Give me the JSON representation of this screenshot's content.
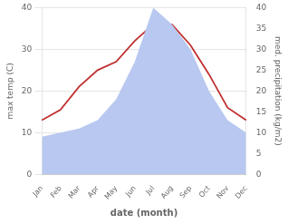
{
  "chart_data": {
    "type": "line",
    "categories": [
      "Jan",
      "Feb",
      "Mar",
      "Apr",
      "May",
      "Jun",
      "Jul",
      "Aug",
      "Sep",
      "Oct",
      "Nov",
      "Dec"
    ],
    "series": [
      {
        "type": "area",
        "color": "#b8c8f0",
        "values": [
          9,
          10,
          11,
          13,
          18,
          27,
          40,
          36,
          30,
          20,
          13,
          10
        ],
        "axis": "y2"
      },
      {
        "type": "line",
        "color": "#c03030",
        "values": [
          13,
          15.5,
          21,
          25,
          27,
          32,
          36,
          36,
          31,
          24,
          16,
          13
        ]
      }
    ],
    "xlabel": "date (month)",
    "ylabel": "max temp (C)",
    "y2label": "med. precipitation (kg/m2)",
    "ylim": [
      0,
      40
    ],
    "yticks": [
      0,
      10,
      20,
      30,
      40
    ],
    "y2lim": [
      0,
      40
    ],
    "y2ticks": [
      0,
      5,
      10,
      15,
      20,
      25,
      30,
      35,
      40
    ],
    "grid": true
  }
}
